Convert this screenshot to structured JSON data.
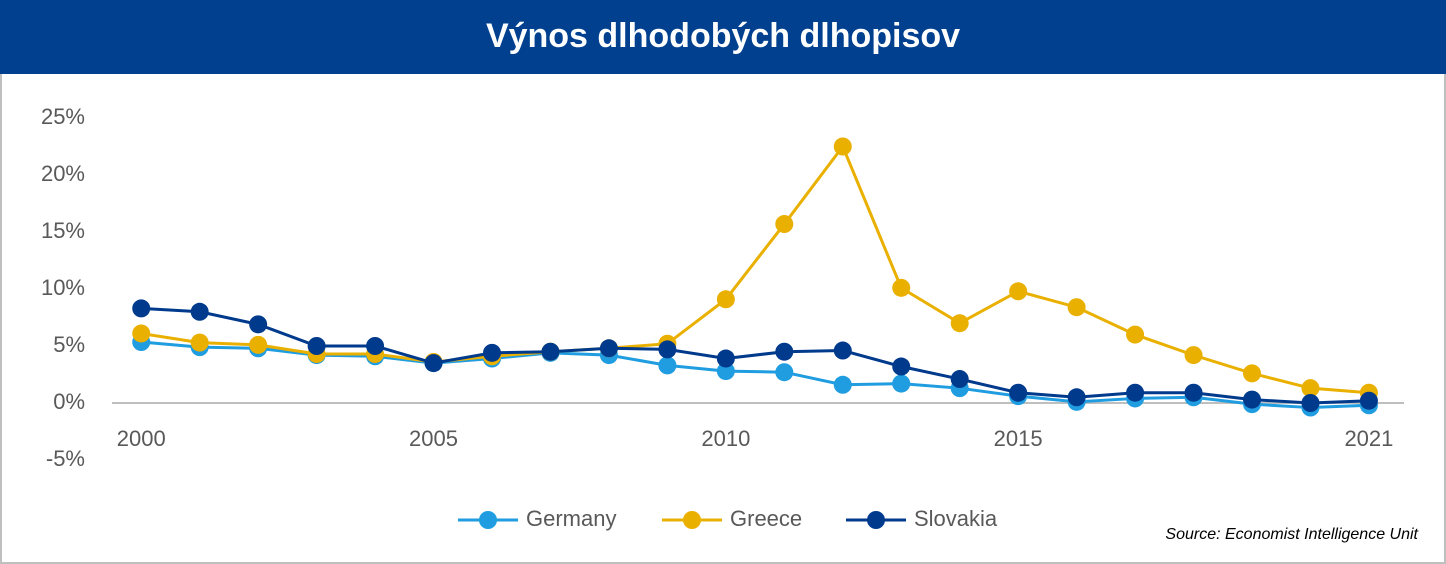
{
  "chart_data": {
    "type": "line",
    "title": "Výnos dlhodobých dlhopisov",
    "x": [
      2000,
      2001,
      2002,
      2003,
      2004,
      2005,
      2006,
      2007,
      2008,
      2009,
      2010,
      2011,
      2012,
      2013,
      2014,
      2015,
      2016,
      2017,
      2018,
      2019,
      2020,
      2021
    ],
    "series": [
      {
        "name": "Germany",
        "color": "#1f9de0",
        "values": [
          5.35,
          4.9,
          4.8,
          4.2,
          4.1,
          3.5,
          3.9,
          4.4,
          4.2,
          3.3,
          2.8,
          2.7,
          1.6,
          1.7,
          1.3,
          0.6,
          0.1,
          0.4,
          0.5,
          -0.1,
          -0.4,
          -0.2
        ]
      },
      {
        "name": "Greece",
        "color": "#eab000",
        "values": [
          6.1,
          5.3,
          5.1,
          4.3,
          4.3,
          3.6,
          4.1,
          4.5,
          4.8,
          5.2,
          9.1,
          15.7,
          22.5,
          10.1,
          7.0,
          9.8,
          8.4,
          6.0,
          4.2,
          2.6,
          1.3,
          0.9
        ]
      },
      {
        "name": "Slovakia",
        "color": "#003a8c",
        "values": [
          8.3,
          8.0,
          6.9,
          5.0,
          5.0,
          3.5,
          4.4,
          4.5,
          4.8,
          4.7,
          3.9,
          4.5,
          4.6,
          3.2,
          2.1,
          0.9,
          0.5,
          0.9,
          0.9,
          0.3,
          0.0,
          0.2
        ]
      }
    ],
    "xlim": [
      1999.5,
      2021.6
    ],
    "xticks": [
      2000,
      2005,
      2010,
      2015,
      2021
    ],
    "ylim": [
      -5,
      25
    ],
    "yticks": [
      {
        "value": 25,
        "label": "25%"
      },
      {
        "value": 20,
        "label": "20%"
      },
      {
        "value": 15,
        "label": "15%"
      },
      {
        "value": 10,
        "label": "10%"
      },
      {
        "value": 5,
        "label": "5%"
      },
      {
        "value": 0,
        "label": "0%"
      },
      {
        "value": -5,
        "label": "-5%"
      }
    ],
    "grid": false,
    "legend": "bottom",
    "source": "Source: Economist Intelligence Unit"
  }
}
